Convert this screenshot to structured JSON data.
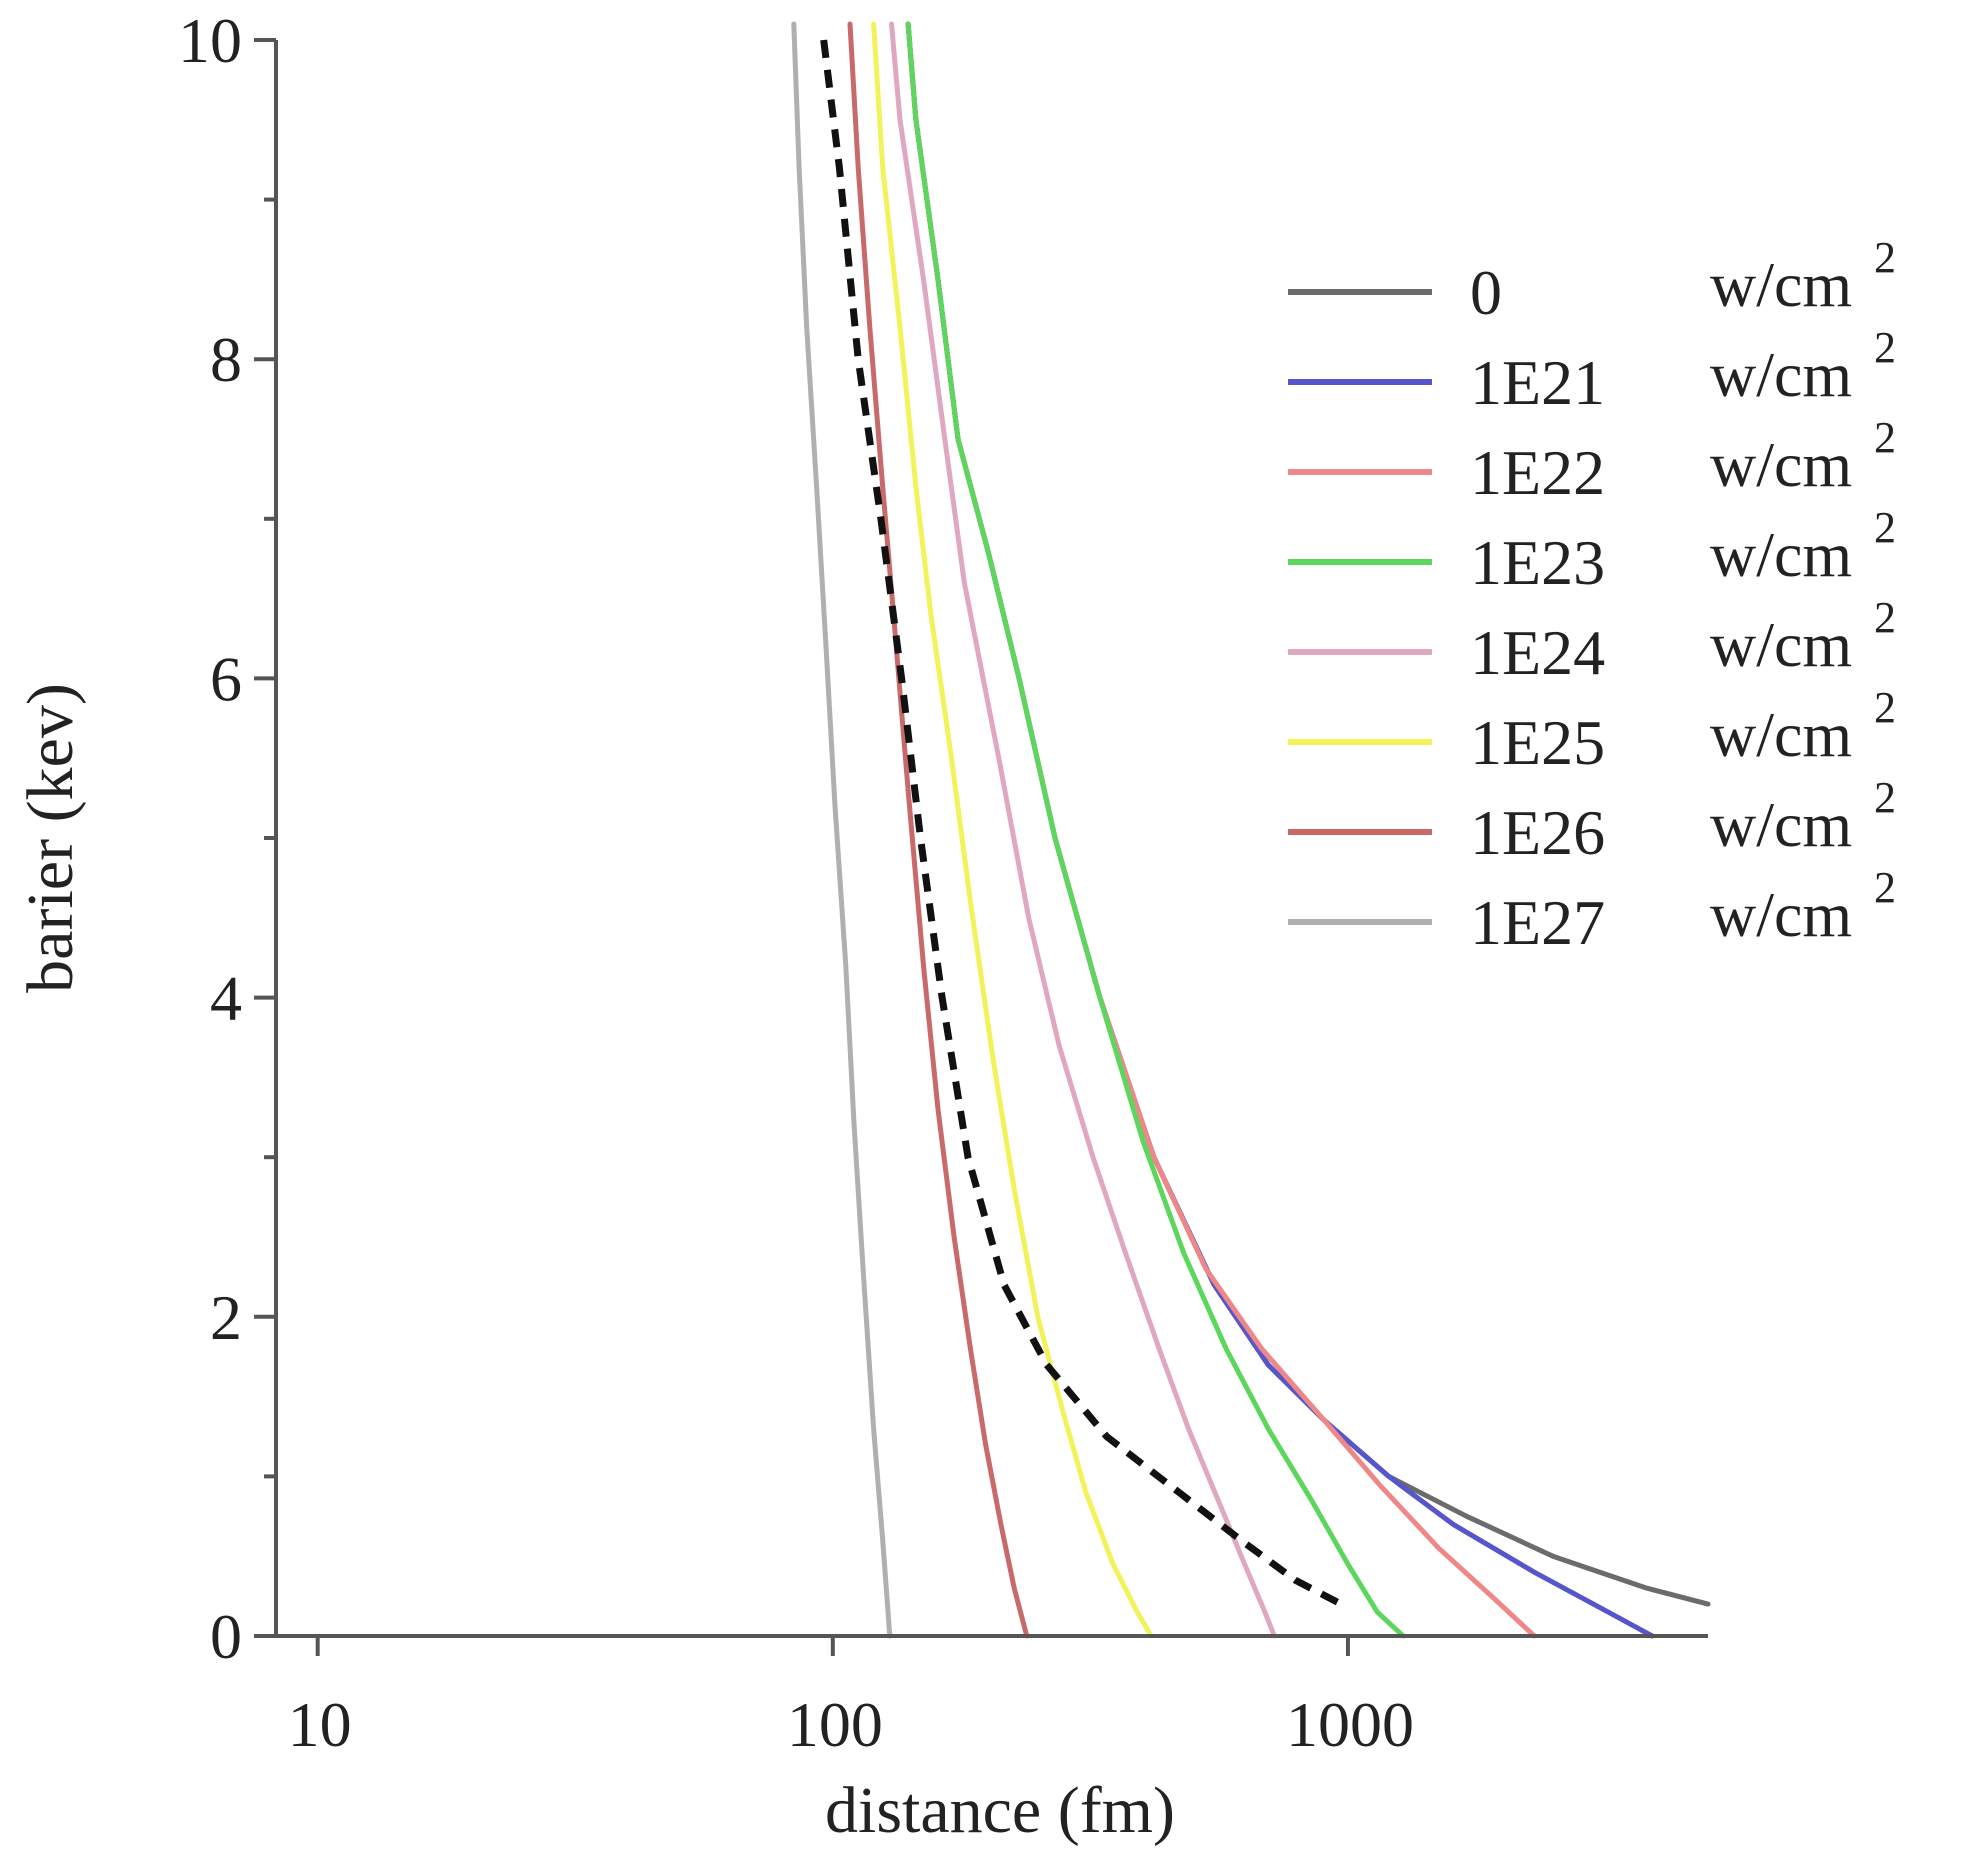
{
  "chart_data": {
    "type": "line",
    "xlabel": "distance (fm)",
    "ylabel": "barier (kev)",
    "x_scale": "log",
    "xlim": [
      8.3,
      5000
    ],
    "ylim": [
      0,
      10
    ],
    "x_ticks": [
      10,
      100,
      1000
    ],
    "x_tick_labels": [
      "10",
      "100",
      "1000"
    ],
    "y_ticks": [
      0,
      2,
      4,
      6,
      8,
      10
    ],
    "y_tick_labels": [
      "0",
      "2",
      "4",
      "6",
      "8",
      "10"
    ],
    "y_minor_ticks": [
      1,
      3,
      5,
      7,
      9
    ],
    "grid": false,
    "legend_position": "top-right",
    "legend_unit": "w/cm",
    "legend_unit_exp": "2",
    "series": [
      {
        "name": "0",
        "color": "#6b6b6b",
        "dash": false,
        "points": [
          [
            140,
            10.1
          ],
          [
            145,
            9.5
          ],
          [
            160,
            8.5
          ],
          [
            175,
            7.5
          ],
          [
            200,
            6.8
          ],
          [
            230,
            6.0
          ],
          [
            270,
            5.0
          ],
          [
            330,
            4.0
          ],
          [
            420,
            3.0
          ],
          [
            550,
            2.2
          ],
          [
            700,
            1.7
          ],
          [
            900,
            1.35
          ],
          [
            1200,
            1.0
          ],
          [
            1700,
            0.75
          ],
          [
            2500,
            0.5
          ],
          [
            3800,
            0.3
          ],
          [
            5000,
            0.2
          ]
        ]
      },
      {
        "name": "1E21",
        "color": "#5555cc",
        "dash": false,
        "points": [
          [
            140,
            10.1
          ],
          [
            145,
            9.5
          ],
          [
            160,
            8.5
          ],
          [
            175,
            7.5
          ],
          [
            200,
            6.8
          ],
          [
            230,
            6.0
          ],
          [
            270,
            5.0
          ],
          [
            330,
            4.0
          ],
          [
            420,
            3.0
          ],
          [
            550,
            2.2
          ],
          [
            700,
            1.7
          ],
          [
            900,
            1.35
          ],
          [
            1200,
            1.0
          ],
          [
            1600,
            0.7
          ],
          [
            2300,
            0.4
          ],
          [
            3200,
            0.15
          ],
          [
            3900,
            0
          ]
        ]
      },
      {
        "name": "1E22",
        "color": "#ee8888",
        "dash": false,
        "points": [
          [
            140,
            10.1
          ],
          [
            145,
            9.5
          ],
          [
            160,
            8.5
          ],
          [
            175,
            7.5
          ],
          [
            200,
            6.8
          ],
          [
            230,
            6.0
          ],
          [
            270,
            5.0
          ],
          [
            330,
            4.0
          ],
          [
            420,
            3.0
          ],
          [
            530,
            2.3
          ],
          [
            680,
            1.8
          ],
          [
            900,
            1.35
          ],
          [
            1150,
            0.95
          ],
          [
            1500,
            0.55
          ],
          [
            1900,
            0.25
          ],
          [
            2300,
            0
          ]
        ]
      },
      {
        "name": "1E23",
        "color": "#5dd65d",
        "dash": false,
        "points": [
          [
            140,
            10.1
          ],
          [
            145,
            9.5
          ],
          [
            160,
            8.5
          ],
          [
            175,
            7.5
          ],
          [
            200,
            6.8
          ],
          [
            230,
            6.0
          ],
          [
            270,
            5.0
          ],
          [
            330,
            4.0
          ],
          [
            400,
            3.1
          ],
          [
            480,
            2.4
          ],
          [
            580,
            1.8
          ],
          [
            700,
            1.3
          ],
          [
            850,
            0.85
          ],
          [
            1000,
            0.45
          ],
          [
            1140,
            0.15
          ],
          [
            1280,
            0
          ]
        ]
      },
      {
        "name": "1E24",
        "color": "#e0a8c0",
        "dash": false,
        "points": [
          [
            130,
            10.1
          ],
          [
            135,
            9.5
          ],
          [
            150,
            8.5
          ],
          [
            165,
            7.5
          ],
          [
            180,
            6.6
          ],
          [
            210,
            5.5
          ],
          [
            240,
            4.5
          ],
          [
            275,
            3.7
          ],
          [
            320,
            3.0
          ],
          [
            370,
            2.4
          ],
          [
            430,
            1.8
          ],
          [
            490,
            1.3
          ],
          [
            560,
            0.85
          ],
          [
            630,
            0.45
          ],
          [
            690,
            0.15
          ],
          [
            720,
            0
          ]
        ]
      },
      {
        "name": "1E25",
        "color": "#f2f25a",
        "dash": false,
        "points": [
          [
            120,
            10.1
          ],
          [
            125,
            9.2
          ],
          [
            135,
            8.2
          ],
          [
            145,
            7.2
          ],
          [
            155,
            6.4
          ],
          [
            170,
            5.5
          ],
          [
            185,
            4.6
          ],
          [
            205,
            3.6
          ],
          [
            225,
            2.8
          ],
          [
            250,
            2.0
          ],
          [
            280,
            1.4
          ],
          [
            310,
            0.9
          ],
          [
            350,
            0.45
          ],
          [
            390,
            0.15
          ],
          [
            415,
            0
          ]
        ]
      },
      {
        "name": "1E26",
        "color": "#c96a6a",
        "dash": false,
        "points": [
          [
            108,
            10.1
          ],
          [
            112,
            9.2
          ],
          [
            118,
            8.2
          ],
          [
            125,
            7.2
          ],
          [
            132,
            6.3
          ],
          [
            140,
            5.3
          ],
          [
            150,
            4.2
          ],
          [
            160,
            3.3
          ],
          [
            172,
            2.5
          ],
          [
            185,
            1.8
          ],
          [
            198,
            1.2
          ],
          [
            212,
            0.7
          ],
          [
            225,
            0.3
          ],
          [
            238,
            0
          ]
        ]
      },
      {
        "name": "1E27",
        "color": "#b0b0b0",
        "dash": false,
        "points": [
          [
            84,
            10.1
          ],
          [
            86,
            9.2
          ],
          [
            89,
            8.2
          ],
          [
            93,
            7.2
          ],
          [
            97,
            6.2
          ],
          [
            101,
            5.2
          ],
          [
            106,
            4.2
          ],
          [
            110,
            3.2
          ],
          [
            115,
            2.2
          ],
          [
            120,
            1.3
          ],
          [
            125,
            0.6
          ],
          [
            129,
            0
          ]
        ]
      },
      {
        "name": "",
        "color": "#111111",
        "dash": true,
        "points": [
          [
            96,
            10.0
          ],
          [
            103,
            9.2
          ],
          [
            112,
            8.0
          ],
          [
            124,
            7.0
          ],
          [
            136,
            6.0
          ],
          [
            148,
            5.0
          ],
          [
            163,
            4.0
          ],
          [
            183,
            3.0
          ],
          [
            215,
            2.2
          ],
          [
            260,
            1.7
          ],
          [
            340,
            1.25
          ],
          [
            470,
            0.9
          ],
          [
            620,
            0.6
          ],
          [
            790,
            0.35
          ],
          [
            970,
            0.2
          ]
        ]
      }
    ]
  }
}
